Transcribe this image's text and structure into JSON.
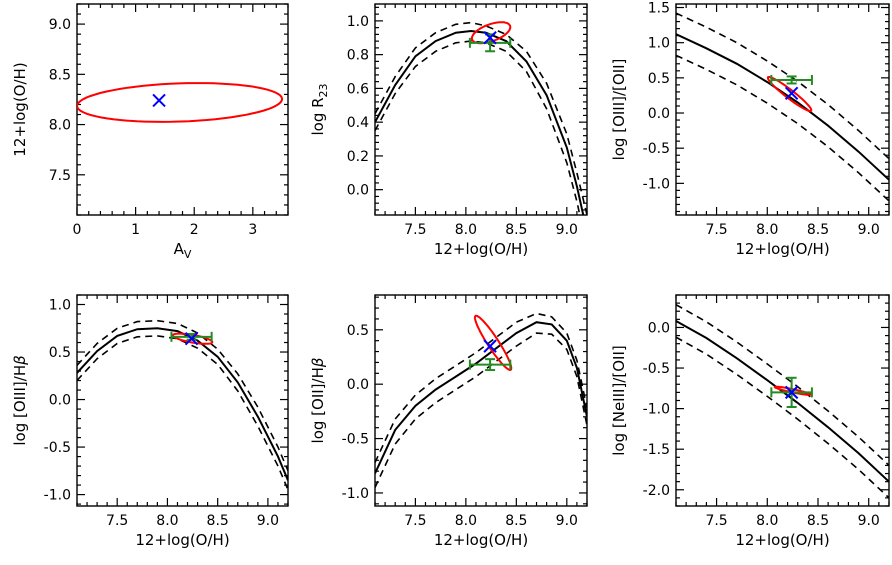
{
  "chart_data": [
    {
      "type": "line",
      "xlabel": "A",
      "xlabel_sub": "V",
      "ylabel": "12+log(O/H)",
      "xlim": [
        0,
        3.6
      ],
      "ylim": [
        7.1,
        9.2
      ],
      "xticks": [
        0,
        1,
        2,
        3
      ],
      "xtick_labels": [
        "0",
        "1",
        "2",
        "3"
      ],
      "yticks": [
        7.5,
        8.0,
        8.5,
        9.0
      ],
      "ytick_labels": [
        "7.5",
        "8.0",
        "8.5",
        "9.0"
      ],
      "marker": {
        "x": 1.4,
        "y": 8.24,
        "color": "#0000ff"
      },
      "ellipse": {
        "cx": 1.75,
        "cy": 8.22,
        "rx": 1.75,
        "ry": 0.19,
        "angle_deg": 2,
        "color": "#ff0000"
      },
      "curves": [],
      "error_bar": null
    },
    {
      "type": "line",
      "xlabel": "12+log(O/H)",
      "ylabel": "log R",
      "ylabel_sub": "23",
      "xlim": [
        7.1,
        9.2
      ],
      "ylim": [
        -0.15,
        1.1
      ],
      "xticks": [
        7.5,
        8.0,
        8.5,
        9.0
      ],
      "xtick_labels": [
        "7.5",
        "8.0",
        "8.5",
        "9.0"
      ],
      "yticks": [
        0.0,
        0.2,
        0.4,
        0.6,
        0.8,
        1.0
      ],
      "ytick_labels": [
        "0.0",
        "0.2",
        "0.4",
        "0.6",
        "0.8",
        "1.0"
      ],
      "marker": {
        "x": 8.24,
        "y": 0.9,
        "color": "#0000ff"
      },
      "ellipse": {
        "cx": 8.25,
        "cy": 0.93,
        "rx": 0.2,
        "ry": 0.05,
        "angle_deg": 20,
        "color": "#ff0000"
      },
      "curves": [
        {
          "style": "solid",
          "x": [
            7.1,
            7.3,
            7.5,
            7.7,
            7.9,
            8.05,
            8.2,
            8.4,
            8.6,
            8.8,
            9.0,
            9.1,
            9.2
          ],
          "y": [
            0.4,
            0.62,
            0.79,
            0.88,
            0.93,
            0.94,
            0.93,
            0.88,
            0.76,
            0.56,
            0.25,
            0.02,
            -0.25
          ]
        },
        {
          "style": "dashed",
          "x": [
            7.1,
            7.3,
            7.5,
            7.7,
            7.9,
            8.05,
            8.2,
            8.4,
            8.6,
            8.8,
            9.0,
            9.1,
            9.2
          ],
          "y": [
            0.45,
            0.67,
            0.84,
            0.93,
            0.98,
            0.99,
            0.97,
            0.92,
            0.82,
            0.63,
            0.33,
            0.1,
            -0.15
          ]
        },
        {
          "style": "dashed",
          "x": [
            7.1,
            7.3,
            7.5,
            7.7,
            7.9,
            8.05,
            8.2,
            8.4,
            8.6,
            8.8,
            9.0,
            9.1,
            9.2
          ],
          "y": [
            0.35,
            0.57,
            0.73,
            0.82,
            0.87,
            0.88,
            0.87,
            0.82,
            0.7,
            0.48,
            0.16,
            -0.07,
            -0.35
          ]
        }
      ],
      "error_bar": {
        "x": 8.24,
        "y": 0.87,
        "xerr": 0.2,
        "yerr": 0.05,
        "color": "#228b22"
      }
    },
    {
      "type": "line",
      "xlabel": "12+log(O/H)",
      "ylabel": "log [OIII]/[OII]",
      "xlim": [
        7.1,
        9.2
      ],
      "ylim": [
        -1.45,
        1.55
      ],
      "xticks": [
        7.5,
        8.0,
        8.5,
        9.0
      ],
      "xtick_labels": [
        "7.5",
        "8.0",
        "8.5",
        "9.0"
      ],
      "yticks": [
        -1.0,
        -0.5,
        0.0,
        0.5,
        1.0,
        1.5
      ],
      "ytick_labels": [
        "-1.0",
        "-0.5",
        "0.0",
        "0.5",
        "1.0",
        "1.5"
      ],
      "marker": {
        "x": 8.24,
        "y": 0.28,
        "color": "#0000ff"
      },
      "ellipse": {
        "cx": 8.22,
        "cy": 0.27,
        "rx": 0.27,
        "ry": 0.06,
        "angle_deg": -38,
        "color": "#ff0000"
      },
      "curves": [
        {
          "style": "solid",
          "x": [
            7.1,
            7.4,
            7.7,
            8.0,
            8.3,
            8.6,
            8.9,
            9.2
          ],
          "y": [
            1.12,
            0.92,
            0.7,
            0.44,
            0.15,
            -0.18,
            -0.55,
            -0.95
          ]
        },
        {
          "style": "dashed",
          "x": [
            7.1,
            7.4,
            7.7,
            8.0,
            8.3,
            8.6,
            8.9,
            9.2
          ],
          "y": [
            1.42,
            1.22,
            1.0,
            0.74,
            0.45,
            0.12,
            -0.25,
            -0.65
          ]
        },
        {
          "style": "dashed",
          "x": [
            7.1,
            7.4,
            7.7,
            8.0,
            8.3,
            8.6,
            8.9,
            9.2
          ],
          "y": [
            0.82,
            0.62,
            0.4,
            0.14,
            -0.15,
            -0.48,
            -0.85,
            -1.25
          ]
        }
      ],
      "error_bar": {
        "x": 8.24,
        "y": 0.47,
        "xerr": 0.2,
        "yerr": 0.05,
        "color": "#228b22"
      }
    },
    {
      "type": "line",
      "xlabel": "12+log(O/H)",
      "ylabel": "log [OIII]/H",
      "ylabel_suffix": "β",
      "xlim": [
        7.1,
        9.2
      ],
      "ylim": [
        -1.12,
        1.1
      ],
      "xticks": [
        7.5,
        8.0,
        8.5,
        9.0
      ],
      "xtick_labels": [
        "7.5",
        "8.0",
        "8.5",
        "9.0"
      ],
      "yticks": [
        -1.0,
        -0.5,
        0.0,
        0.5,
        1.0
      ],
      "ytick_labels": [
        "-1.0",
        "-0.5",
        "0.0",
        "0.5",
        "1.0"
      ],
      "marker": {
        "x": 8.24,
        "y": 0.64,
        "color": "#0000ff"
      },
      "ellipse": {
        "cx": 8.25,
        "cy": 0.64,
        "rx": 0.2,
        "ry": 0.04,
        "angle_deg": -10,
        "color": "#ff0000"
      },
      "curves": [
        {
          "style": "solid",
          "x": [
            7.1,
            7.3,
            7.5,
            7.7,
            7.9,
            8.1,
            8.3,
            8.5,
            8.7,
            8.9,
            9.1,
            9.2
          ],
          "y": [
            0.28,
            0.51,
            0.67,
            0.74,
            0.75,
            0.72,
            0.62,
            0.45,
            0.18,
            -0.18,
            -0.6,
            -0.85
          ]
        },
        {
          "style": "dashed",
          "x": [
            7.1,
            7.3,
            7.5,
            7.7,
            7.9,
            8.1,
            8.3,
            8.5,
            8.7,
            8.9,
            9.1,
            9.2
          ],
          "y": [
            0.36,
            0.59,
            0.75,
            0.82,
            0.83,
            0.8,
            0.7,
            0.53,
            0.27,
            -0.08,
            -0.5,
            -0.75
          ]
        },
        {
          "style": "dashed",
          "x": [
            7.1,
            7.3,
            7.5,
            7.7,
            7.9,
            8.1,
            8.3,
            8.5,
            8.7,
            8.9,
            9.1,
            9.2
          ],
          "y": [
            0.2,
            0.43,
            0.59,
            0.66,
            0.67,
            0.64,
            0.54,
            0.37,
            0.09,
            -0.28,
            -0.7,
            -0.95
          ]
        }
      ],
      "error_bar": {
        "x": 8.24,
        "y": 0.66,
        "xerr": 0.2,
        "yerr": 0.03,
        "color": "#228b22"
      }
    },
    {
      "type": "line",
      "xlabel": "12+log(O/H)",
      "ylabel": "log [OII]/H",
      "ylabel_suffix": "β",
      "xlim": [
        7.1,
        9.2
      ],
      "ylim": [
        -1.12,
        0.82
      ],
      "xticks": [
        7.5,
        8.0,
        8.5,
        9.0
      ],
      "xtick_labels": [
        "7.5",
        "8.0",
        "8.5",
        "9.0"
      ],
      "yticks": [
        -1.0,
        -0.5,
        0.0,
        0.5
      ],
      "ytick_labels": [
        "-1.0",
        "-0.5",
        "0.0",
        "0.5"
      ],
      "marker": {
        "x": 8.24,
        "y": 0.35,
        "color": "#0000ff"
      },
      "ellipse": {
        "cx": 8.27,
        "cy": 0.38,
        "rx": 0.32,
        "ry": 0.05,
        "angle_deg": -57,
        "color": "#ff0000"
      },
      "curves": [
        {
          "style": "solid",
          "x": [
            7.1,
            7.3,
            7.5,
            7.7,
            7.9,
            8.1,
            8.3,
            8.5,
            8.7,
            8.85,
            9.0,
            9.1,
            9.2
          ],
          "y": [
            -0.82,
            -0.42,
            -0.2,
            -0.05,
            0.07,
            0.19,
            0.33,
            0.47,
            0.57,
            0.55,
            0.4,
            0.15,
            -0.3
          ]
        },
        {
          "style": "dashed",
          "x": [
            7.1,
            7.3,
            7.5,
            7.7,
            7.9,
            8.1,
            8.3,
            8.5,
            8.7,
            8.85,
            9.0,
            9.1,
            9.2
          ],
          "y": [
            -0.72,
            -0.32,
            -0.1,
            0.05,
            0.17,
            0.29,
            0.43,
            0.57,
            0.65,
            0.62,
            0.47,
            0.22,
            -0.22
          ]
        },
        {
          "style": "dashed",
          "x": [
            7.1,
            7.3,
            7.5,
            7.7,
            7.9,
            8.1,
            8.3,
            8.5,
            8.7,
            8.85,
            9.0,
            9.1,
            9.2
          ],
          "y": [
            -0.95,
            -0.55,
            -0.32,
            -0.17,
            -0.05,
            0.07,
            0.21,
            0.35,
            0.47,
            0.46,
            0.32,
            0.07,
            -0.38
          ]
        }
      ],
      "error_bar": {
        "x": 8.24,
        "y": 0.18,
        "xerr": 0.2,
        "yerr": 0.05,
        "color": "#228b22"
      }
    },
    {
      "type": "line",
      "xlabel": "12+log(O/H)",
      "ylabel": "log [NeIII]/[OII]",
      "xlim": [
        7.1,
        9.2
      ],
      "ylim": [
        -2.2,
        0.4
      ],
      "xticks": [
        7.5,
        8.0,
        8.5,
        9.0
      ],
      "xtick_labels": [
        "7.5",
        "8.0",
        "8.5",
        "9.0"
      ],
      "yticks": [
        -2.0,
        -1.5,
        -1.0,
        -0.5,
        0.0
      ],
      "ytick_labels": [
        "-2.0",
        "-1.5",
        "-1.0",
        "-0.5",
        "0.0"
      ],
      "marker": {
        "x": 8.24,
        "y": -0.8,
        "color": "#0000ff"
      },
      "ellipse": {
        "cx": 8.25,
        "cy": -0.78,
        "rx": 0.18,
        "ry": 0.02,
        "angle_deg": -12,
        "color": "#ff0000"
      },
      "curves": [
        {
          "style": "solid",
          "x": [
            7.1,
            7.4,
            7.7,
            8.0,
            8.3,
            8.6,
            8.9,
            9.2
          ],
          "y": [
            0.08,
            -0.13,
            -0.38,
            -0.65,
            -0.93,
            -1.23,
            -1.55,
            -1.9
          ]
        },
        {
          "style": "dashed",
          "x": [
            7.1,
            7.4,
            7.7,
            8.0,
            8.3,
            8.6,
            8.9,
            9.2
          ],
          "y": [
            0.28,
            0.07,
            -0.18,
            -0.45,
            -0.73,
            -1.03,
            -1.35,
            -1.7
          ]
        },
        {
          "style": "dashed",
          "x": [
            7.1,
            7.4,
            7.7,
            8.0,
            8.3,
            8.6,
            8.9,
            9.2
          ],
          "y": [
            -0.12,
            -0.33,
            -0.58,
            -0.85,
            -1.13,
            -1.43,
            -1.75,
            -2.1
          ]
        }
      ],
      "error_bar": {
        "x": 8.24,
        "y": -0.8,
        "xerr": 0.2,
        "yerr": 0.18,
        "color": "#228b22"
      }
    }
  ]
}
